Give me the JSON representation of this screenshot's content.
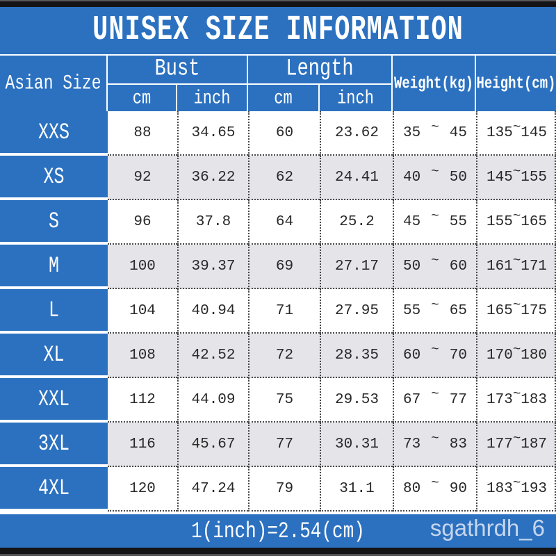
{
  "title": "UNISEX SIZE INFORMATION",
  "colors": {
    "accent_blue": "#2c71c0",
    "row_alt_gray": "#e5e4e8",
    "bar_dark": "#141416",
    "watermark_text": "#e9edf6"
  },
  "table": {
    "corner": "Asian Size",
    "group_bust": "Bust",
    "group_length": "Length",
    "subs": [
      "cm",
      "inch",
      "cm",
      "inch"
    ],
    "weight_header": "Weight(kg)",
    "height_header": "Height(cm)",
    "tilde": "~",
    "rows": [
      {
        "size": "XXS",
        "bust_cm": "88",
        "bust_inch": "34.65",
        "length_cm": "60",
        "length_inch": "23.62",
        "weight_min": "35",
        "weight_max": "45",
        "height_min": "135",
        "height_max": "145"
      },
      {
        "size": "XS",
        "bust_cm": "92",
        "bust_inch": "36.22",
        "length_cm": "62",
        "length_inch": "24.41",
        "weight_min": "40",
        "weight_max": "50",
        "height_min": "145",
        "height_max": "155"
      },
      {
        "size": "S",
        "bust_cm": "96",
        "bust_inch": "37.8",
        "length_cm": "64",
        "length_inch": "25.2",
        "weight_min": "45",
        "weight_max": "55",
        "height_min": "155",
        "height_max": "165"
      },
      {
        "size": "M",
        "bust_cm": "100",
        "bust_inch": "39.37",
        "length_cm": "69",
        "length_inch": "27.17",
        "weight_min": "50",
        "weight_max": "60",
        "height_min": "161",
        "height_max": "171"
      },
      {
        "size": "L",
        "bust_cm": "104",
        "bust_inch": "40.94",
        "length_cm": "71",
        "length_inch": "27.95",
        "weight_min": "55",
        "weight_max": "65",
        "height_min": "165",
        "height_max": "175"
      },
      {
        "size": "XL",
        "bust_cm": "108",
        "bust_inch": "42.52",
        "length_cm": "72",
        "length_inch": "28.35",
        "weight_min": "60",
        "weight_max": "70",
        "height_min": "170",
        "height_max": "180"
      },
      {
        "size": "XXL",
        "bust_cm": "112",
        "bust_inch": "44.09",
        "length_cm": "75",
        "length_inch": "29.53",
        "weight_min": "67",
        "weight_max": "77",
        "height_min": "173",
        "height_max": "183"
      },
      {
        "size": "3XL",
        "bust_cm": "116",
        "bust_inch": "45.67",
        "length_cm": "77",
        "length_inch": "30.31",
        "weight_min": "73",
        "weight_max": "83",
        "height_min": "177",
        "height_max": "187"
      },
      {
        "size": "4XL",
        "bust_cm": "120",
        "bust_inch": "47.24",
        "length_cm": "79",
        "length_inch": "31.1",
        "weight_min": "80",
        "weight_max": "90",
        "height_min": "183",
        "height_max": "193"
      }
    ]
  },
  "footer": {
    "note": "1(inch)=2.54(cm)",
    "watermark": "sgathrdh_6"
  }
}
